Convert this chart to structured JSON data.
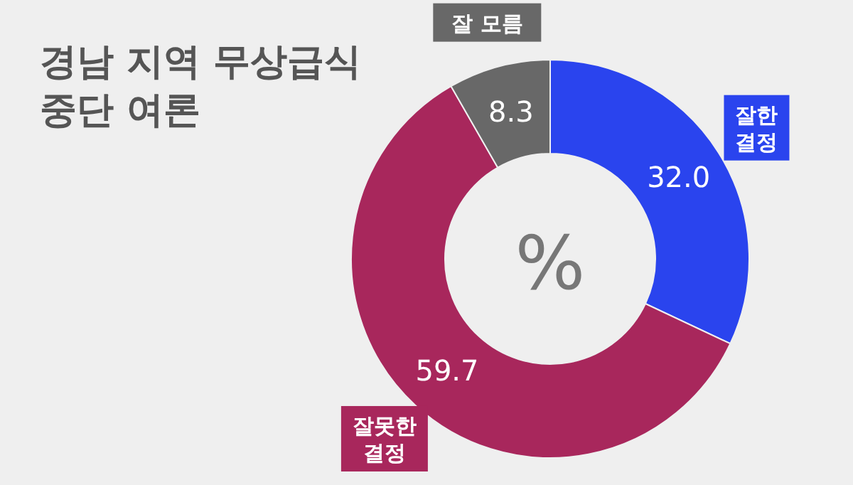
{
  "chart_data": {
    "type": "donut",
    "title": "경남 지역 무상급식 중단 여론",
    "categories": [
      "잘한 결정",
      "잘못한 결정",
      "잘 모름"
    ],
    "values": [
      32.0,
      59.7,
      8.3
    ],
    "value_labels": [
      "32.0",
      "59.7",
      "8.3"
    ],
    "colors": [
      "#2a44ee",
      "#a8275c",
      "#686868"
    ],
    "annotations": [
      "%"
    ]
  }
}
